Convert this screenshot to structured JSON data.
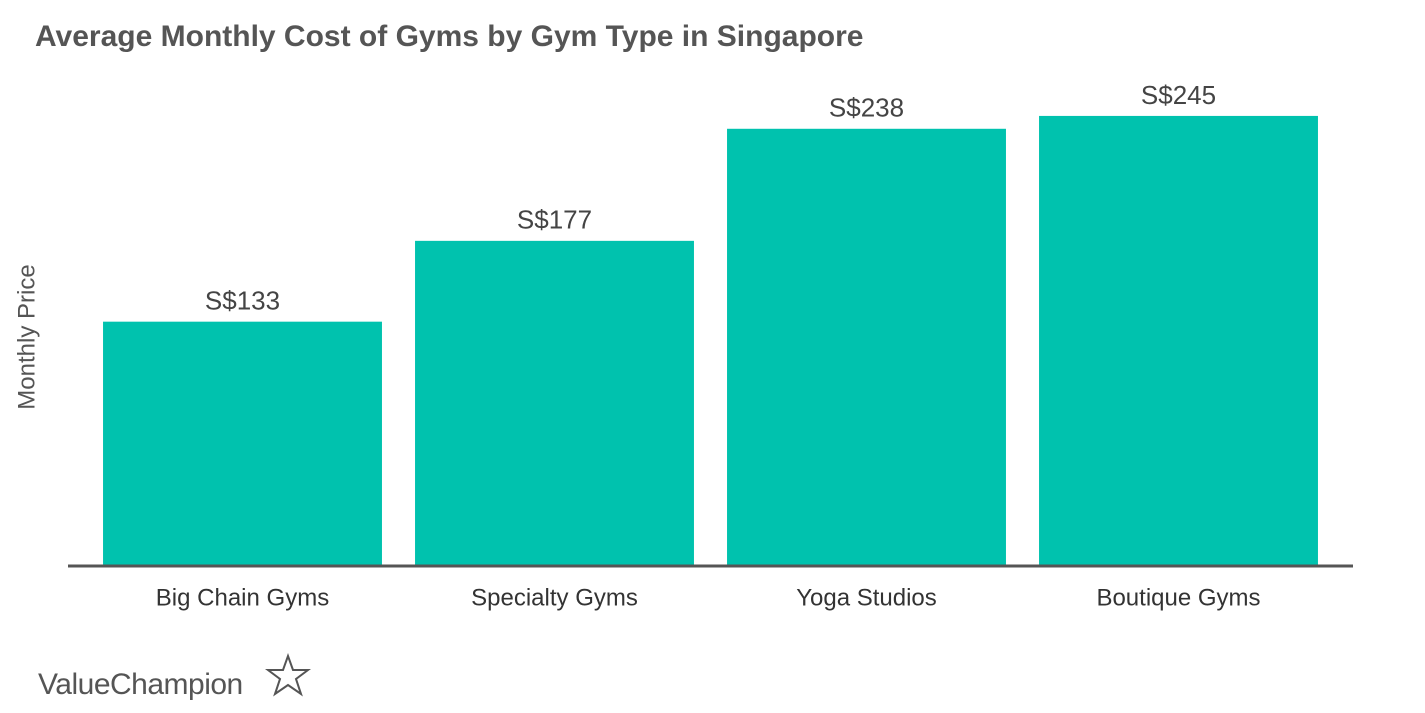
{
  "chart_data": {
    "type": "bar",
    "title": "Average Monthly Cost of Gyms by Gym Type in Singapore",
    "y_label": "Monthly Price",
    "categories": [
      "Big Chain Gyms",
      "Specialty Gyms",
      "Yoga Studios",
      "Boutique Gyms"
    ],
    "values": [
      133,
      177,
      238,
      245
    ],
    "value_labels": [
      "S$133",
      "S$177",
      "S$238",
      "S$245"
    ],
    "color": "#00c2ae",
    "ylim": [
      0,
      270
    ]
  },
  "logo": "ValueChampion"
}
